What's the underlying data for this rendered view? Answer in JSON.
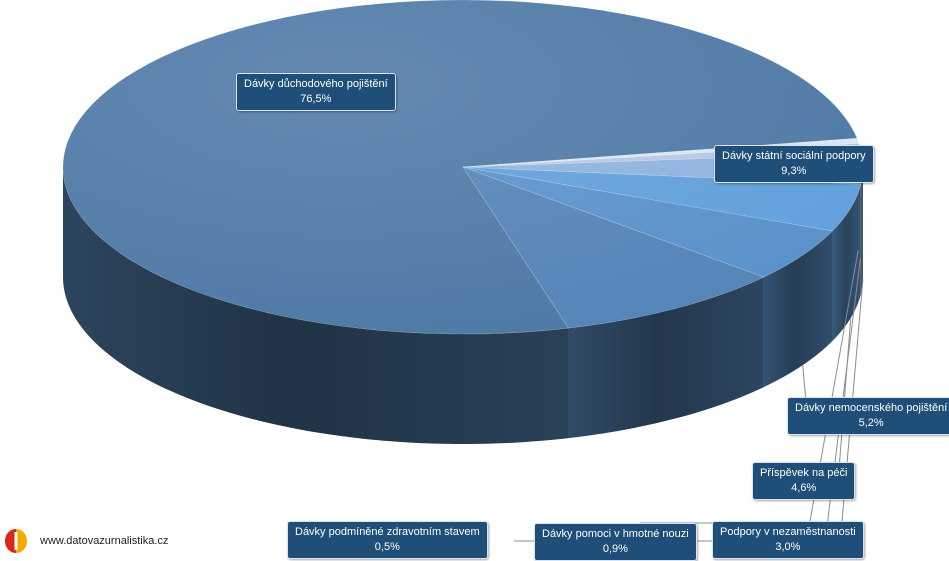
{
  "chart_data": {
    "type": "pie",
    "style": "3d",
    "slices": [
      {
        "label": "Dávky důchodového pojištění",
        "value": 76.5,
        "value_label": "76,5%",
        "color": "#4f7aa6"
      },
      {
        "label": "Dávky státní sociální podpory",
        "value": 9.3,
        "value_label": "9,3%",
        "color": "#5685b8"
      },
      {
        "label": "Dávky nemocenského pojištění",
        "value": 5.2,
        "value_label": "5,2%",
        "color": "#5b92cb"
      },
      {
        "label": "Příspěvek na péči",
        "value": 4.6,
        "value_label": "4,6%",
        "color": "#63a0dc"
      },
      {
        "label": "Podpory v nezaměstnanosti",
        "value": 3.0,
        "value_label": "3,0%",
        "color": "#8fb3de"
      },
      {
        "label": "Dávky pomoci v hmotné nouzi",
        "value": 0.9,
        "value_label": "0,9%",
        "color": "#b4c9e6"
      },
      {
        "label": "Dávky podmíněné zdravotním stavem",
        "value": 0.5,
        "value_label": "0,5%",
        "color": "#dbe5f3"
      }
    ]
  },
  "footer": {
    "source": "www.datovazurnalistika.cz",
    "logo": "datovazurnalistika-logo-icon"
  }
}
